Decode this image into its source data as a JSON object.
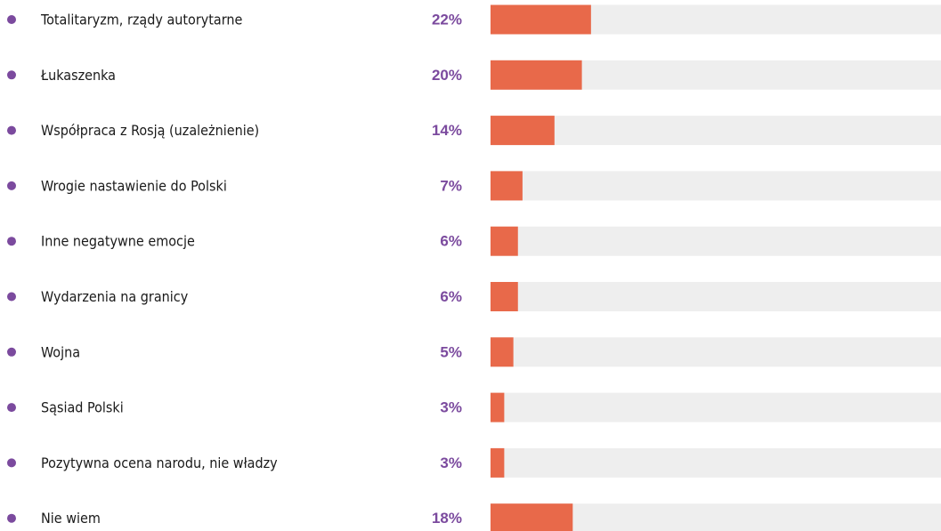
{
  "chart_data": {
    "type": "bar",
    "orientation": "horizontal",
    "categories": [
      "Totalitaryzm, rządy autorytarne",
      "Łukaszenka",
      "Współpraca z Rosją (uzależnienie)",
      "Wrogie nastawienie do Polski",
      "Inne negatywne emocje",
      "Wydarzenia na granicy",
      "Wojna",
      "Sąsiad Polski",
      "Pozytywna ocena narodu, nie władzy",
      "Nie wiem"
    ],
    "values": [
      22,
      20,
      14,
      7,
      6,
      6,
      5,
      3,
      3,
      18
    ],
    "value_labels": [
      "22%",
      "20%",
      "14%",
      "7%",
      "6%",
      "6%",
      "5%",
      "3%",
      "3%",
      "18%"
    ],
    "color": "#e8694a",
    "xlim": [
      0,
      100
    ]
  }
}
